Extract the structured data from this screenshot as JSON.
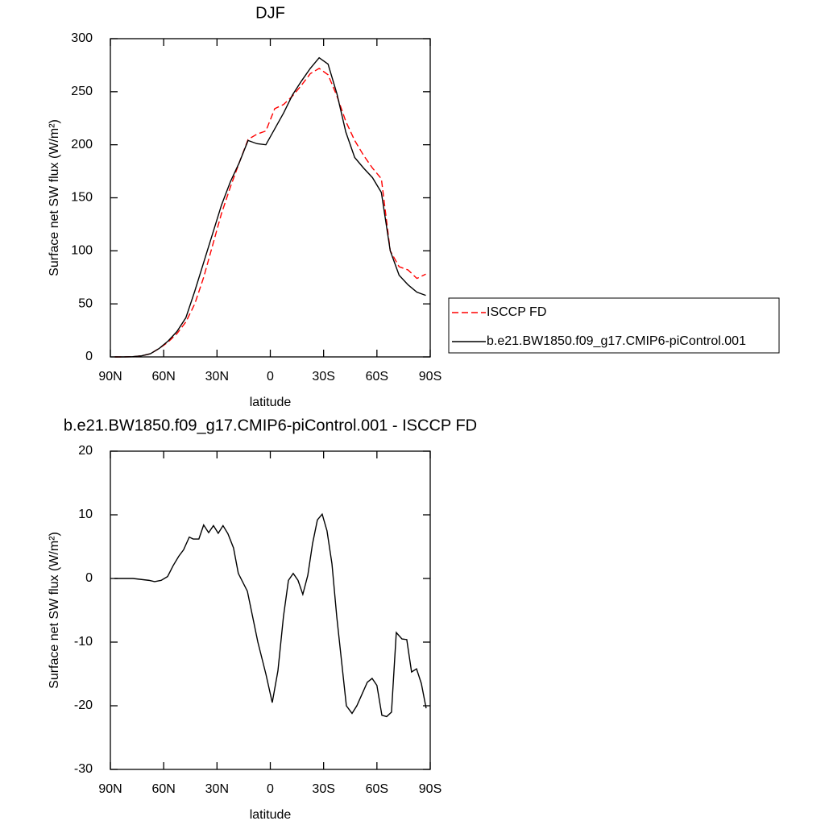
{
  "chart_data": [
    {
      "type": "line",
      "title": "DJF",
      "x_label": "latitude",
      "y_label": "Surface net SW flux (W/m²)",
      "x": [
        87.5,
        82.5,
        77.5,
        72.5,
        67.5,
        62.5,
        57.5,
        52.5,
        47.5,
        42.5,
        37.5,
        32.5,
        27.5,
        22.5,
        17.5,
        12.5,
        7.5,
        2.5,
        -2.5,
        -7.5,
        -12.5,
        -17.5,
        -22.5,
        -27.5,
        -32.5,
        -37.5,
        -42.5,
        -47.5,
        -52.5,
        -57.5,
        -62.5,
        -67.5,
        -72.5,
        -77.5,
        -82.5,
        -87.5
      ],
      "series": [
        {
          "name": "ISCCP FD",
          "color": "#ff0000",
          "line_style": "dashed",
          "values": [
            0,
            0,
            0.2,
            1,
            3,
            8,
            14,
            22,
            33,
            50,
            75,
            105,
            135,
            160,
            183,
            205,
            210,
            213,
            234,
            238,
            246,
            256,
            267,
            272,
            266,
            246,
            222,
            204,
            190,
            178,
            168,
            100,
            85,
            82,
            74,
            78
          ]
        },
        {
          "name": "b.e21.BW1850.f09_g17.CMIP6-piControl.001",
          "color": "#000000",
          "line_style": "solid",
          "values": [
            0,
            0,
            0.2,
            1,
            3,
            8,
            15,
            24,
            37,
            62,
            89,
            116,
            143,
            165,
            183,
            204,
            201,
            200,
            215,
            230,
            247,
            260,
            272,
            282,
            276,
            248,
            212,
            188,
            178,
            169,
            155,
            100,
            77,
            68,
            61,
            58
          ]
        }
      ],
      "xlim": [
        90,
        -90
      ],
      "xticks": [
        {
          "value": 90,
          "label": "90N"
        },
        {
          "value": 60,
          "label": "60N"
        },
        {
          "value": 30,
          "label": "30N"
        },
        0,
        {
          "value": -30,
          "label": "30S"
        },
        {
          "value": -60,
          "label": "60S"
        },
        {
          "value": -90,
          "label": "90S"
        }
      ],
      "ylim": [
        0,
        300
      ],
      "yticks": [
        0,
        50,
        100,
        150,
        200,
        250,
        300
      ],
      "grid": false,
      "legend": "right"
    },
    {
      "type": "line",
      "title": "b.e21.BW1850.f09_g17.CMIP6-piControl.001 - ISCCP FD",
      "x_label": "latitude",
      "y_label": "Surface net SW flux (W/m²)",
      "x": [
        87.7,
        77.3,
        68.2,
        65.1,
        61.4,
        57.8,
        54.7,
        51.5,
        48.8,
        45.6,
        43.4,
        40.2,
        37.5,
        34.7,
        32.0,
        29.3,
        26.6,
        23.8,
        20.7,
        18.0,
        12.9,
        7.0,
        2.5,
        -1.1,
        -4.3,
        -7.4,
        -10.2,
        -12.9,
        -15.6,
        -18.3,
        -21.1,
        -23.8,
        -26.5,
        -29.2,
        -31.9,
        -34.7,
        -37.4,
        -40.1,
        -42.8,
        -46.0,
        -48.7,
        -51.9,
        -54.6,
        -57.3,
        -60.0,
        -62.8,
        -65.5,
        -68.2,
        -70.9,
        -74.1,
        -76.8,
        -79.5,
        -82.3,
        -85.0,
        -87.7
      ],
      "values": [
        0,
        0,
        -0.3,
        -0.5,
        -0.3,
        0.3,
        2,
        3.5,
        4.5,
        6.5,
        6.2,
        6.2,
        8.4,
        7.2,
        8.3,
        7.1,
        8.3,
        7,
        4.8,
        0.8,
        -2,
        -10,
        -15,
        -19.5,
        -14.5,
        -6,
        -0.3,
        0.8,
        -0.3,
        -2.5,
        0.5,
        5.5,
        9.2,
        10.1,
        7.5,
        2.3,
        -6,
        -13,
        -20,
        -21.2,
        -20,
        -18,
        -16.3,
        -15.7,
        -16.8,
        -21.5,
        -21.7,
        -21,
        -8.5,
        -9.5,
        -9.6,
        -14.7,
        -14.2,
        -16.5,
        -20.4
      ],
      "color": "#000000",
      "line_style": "solid",
      "xlim": [
        90,
        -90
      ],
      "xticks": [
        {
          "value": 90,
          "label": "90N"
        },
        {
          "value": 60,
          "label": "60N"
        },
        {
          "value": 30,
          "label": "30N"
        },
        0,
        {
          "value": -30,
          "label": "30S"
        },
        {
          "value": -60,
          "label": "60S"
        },
        {
          "value": -90,
          "label": "90S"
        }
      ],
      "ylim": [
        -30,
        20
      ],
      "yticks": [
        -30,
        -20,
        -10,
        0,
        10,
        20
      ],
      "grid": false
    }
  ]
}
